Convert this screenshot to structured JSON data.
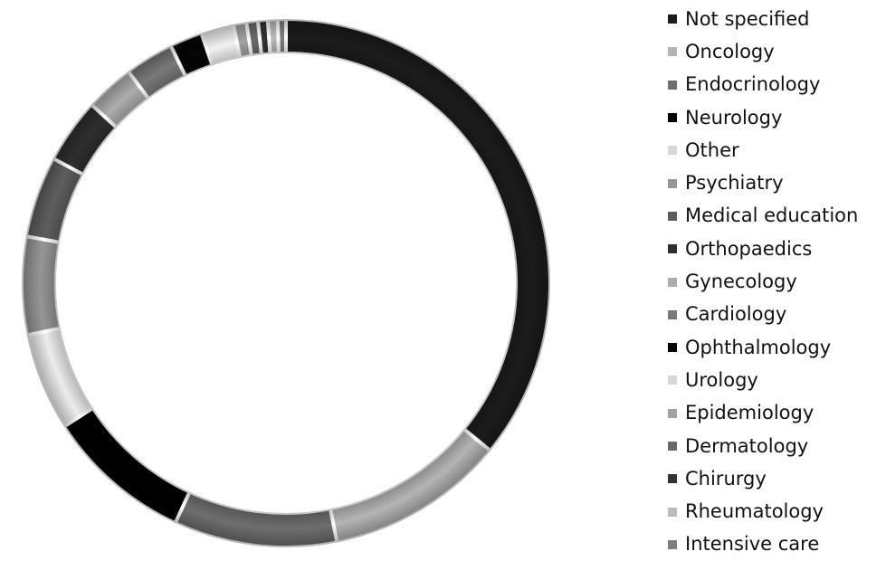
{
  "chart_data": {
    "type": "pie",
    "variant": "donut",
    "title": "",
    "categories": [
      "Not specified",
      "Oncology",
      "Endocrinology",
      "Neurology",
      "Other",
      "Psychiatry",
      "Medical education",
      "Orthopaedics",
      "Gynecology",
      "Cardiology",
      "Ophthalmology",
      "Urology",
      "Epidemiology",
      "Dermatology",
      "Chirurgy",
      "Rheumatology",
      "Intensive care"
    ],
    "values": [
      36,
      11,
      10,
      9,
      6,
      6,
      5,
      4,
      3,
      3,
      2,
      2,
      0.8,
      0.7,
      0.6,
      0.6,
      0.5
    ],
    "colors": [
      "#1c1c1c",
      "#b4b4b4",
      "#6e6e6e",
      "#000000",
      "#ececec",
      "#969696",
      "#5e5e5e",
      "#2e2e2e",
      "#adadad",
      "#787878",
      "#050505",
      "#f2f2f2",
      "#a2a2a2",
      "#6a6a6a",
      "#333333",
      "#bbbbbb",
      "#7e7e7e"
    ],
    "start_angle_deg": 0,
    "direction": "clockwise",
    "legend_position": "right"
  }
}
